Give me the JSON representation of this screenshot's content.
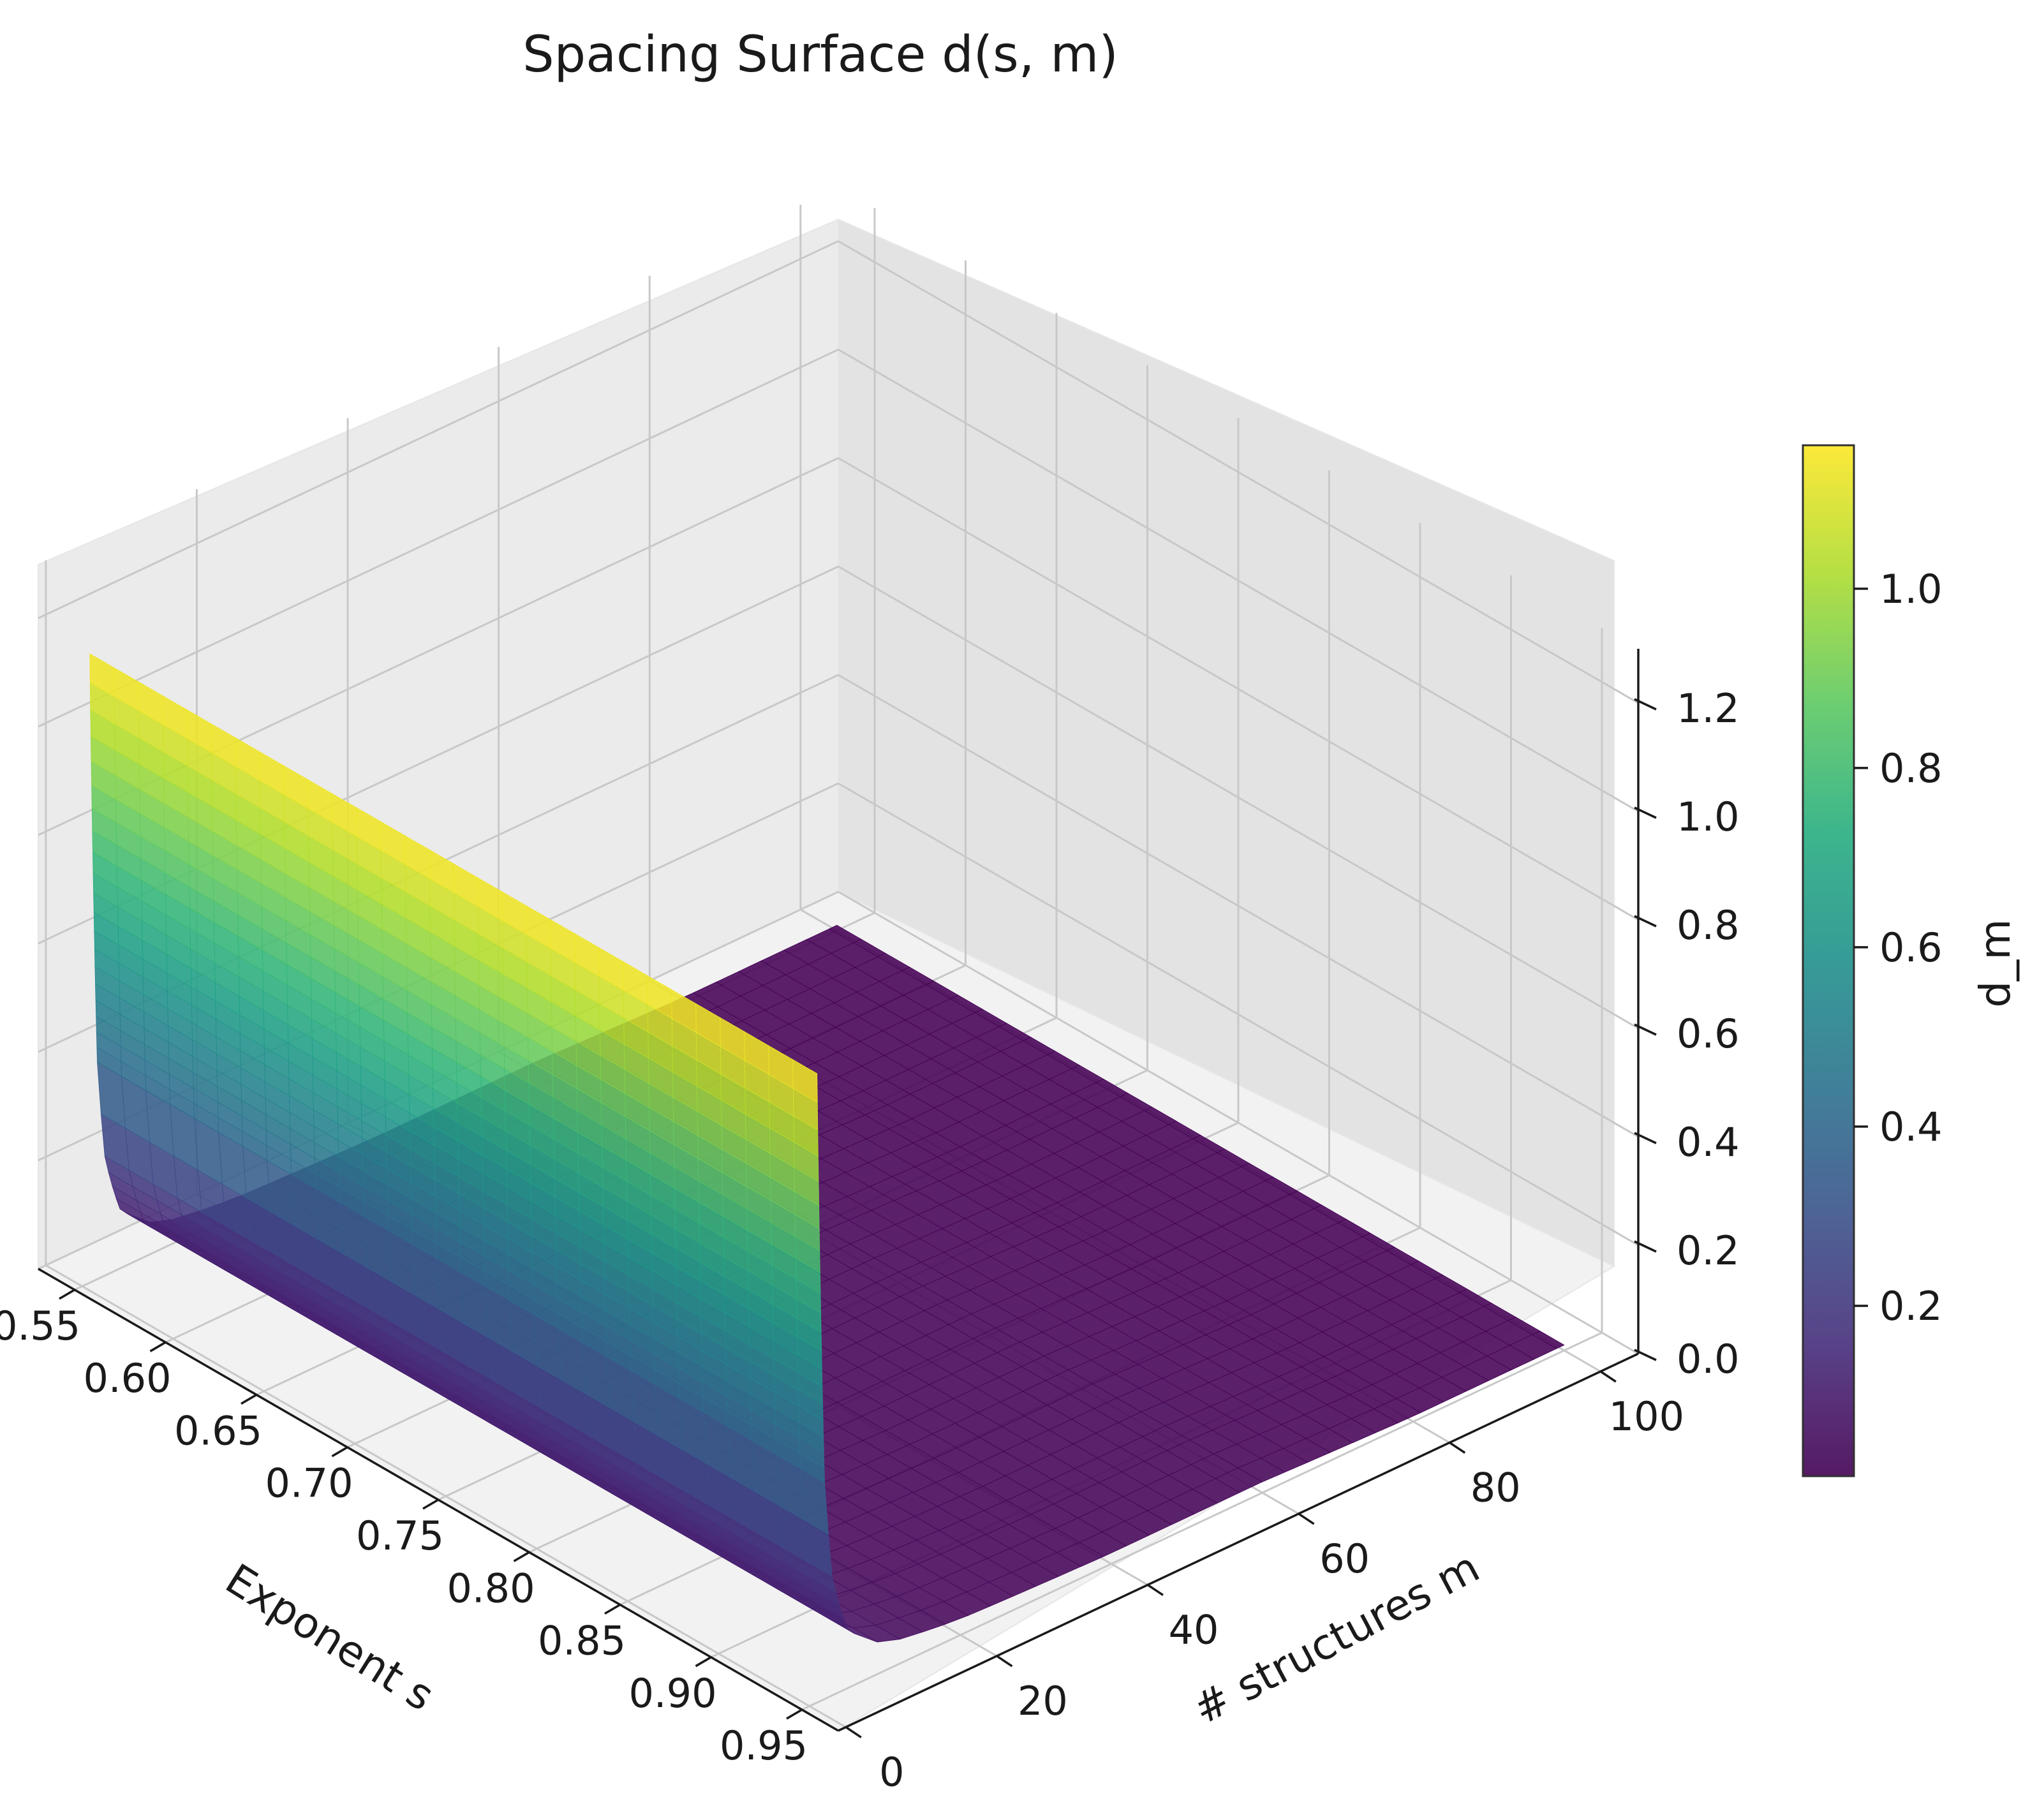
{
  "chart_data": {
    "type": "surface",
    "title": "Spacing Surface d(s, m)",
    "xlabel": "Exponent s",
    "ylabel": "# structures m",
    "zlabel": "d_m",
    "colorbar_label": "d_m",
    "colormap": "viridis",
    "xlim": [
      0.53,
      0.97
    ],
    "ylim": [
      -1,
      105
    ],
    "zlim": [
      0,
      1.3
    ],
    "x_ticks": [
      "0.55",
      "0.60",
      "0.65",
      "0.70",
      "0.75",
      "0.80",
      "0.85",
      "0.90",
      "0.95"
    ],
    "y_ticks": [
      "0",
      "20",
      "40",
      "60",
      "80",
      "100"
    ],
    "z_ticks": [
      "0.0",
      "0.2",
      "0.4",
      "0.6",
      "0.8",
      "1.0",
      "1.2"
    ],
    "colorbar_ticks": [
      "0.2",
      "0.4",
      "0.6",
      "0.8",
      "1.0"
    ],
    "colorbar_range": [
      0.01,
      1.16
    ],
    "s_range": [
      0.55,
      0.95
    ],
    "m_range": [
      1,
      100
    ],
    "surface_samples": {
      "m": [
        1,
        2,
        3,
        5,
        10,
        20,
        40,
        60,
        80,
        100
      ],
      "d_at_s_0_55": [
        1.16,
        0.4,
        0.22,
        0.11,
        0.05,
        0.03,
        0.02,
        0.02,
        0.01,
        0.01
      ],
      "d_at_s_0_95": [
        1.16,
        0.4,
        0.22,
        0.11,
        0.05,
        0.03,
        0.02,
        0.02,
        0.01,
        0.01
      ]
    },
    "grid": true
  }
}
